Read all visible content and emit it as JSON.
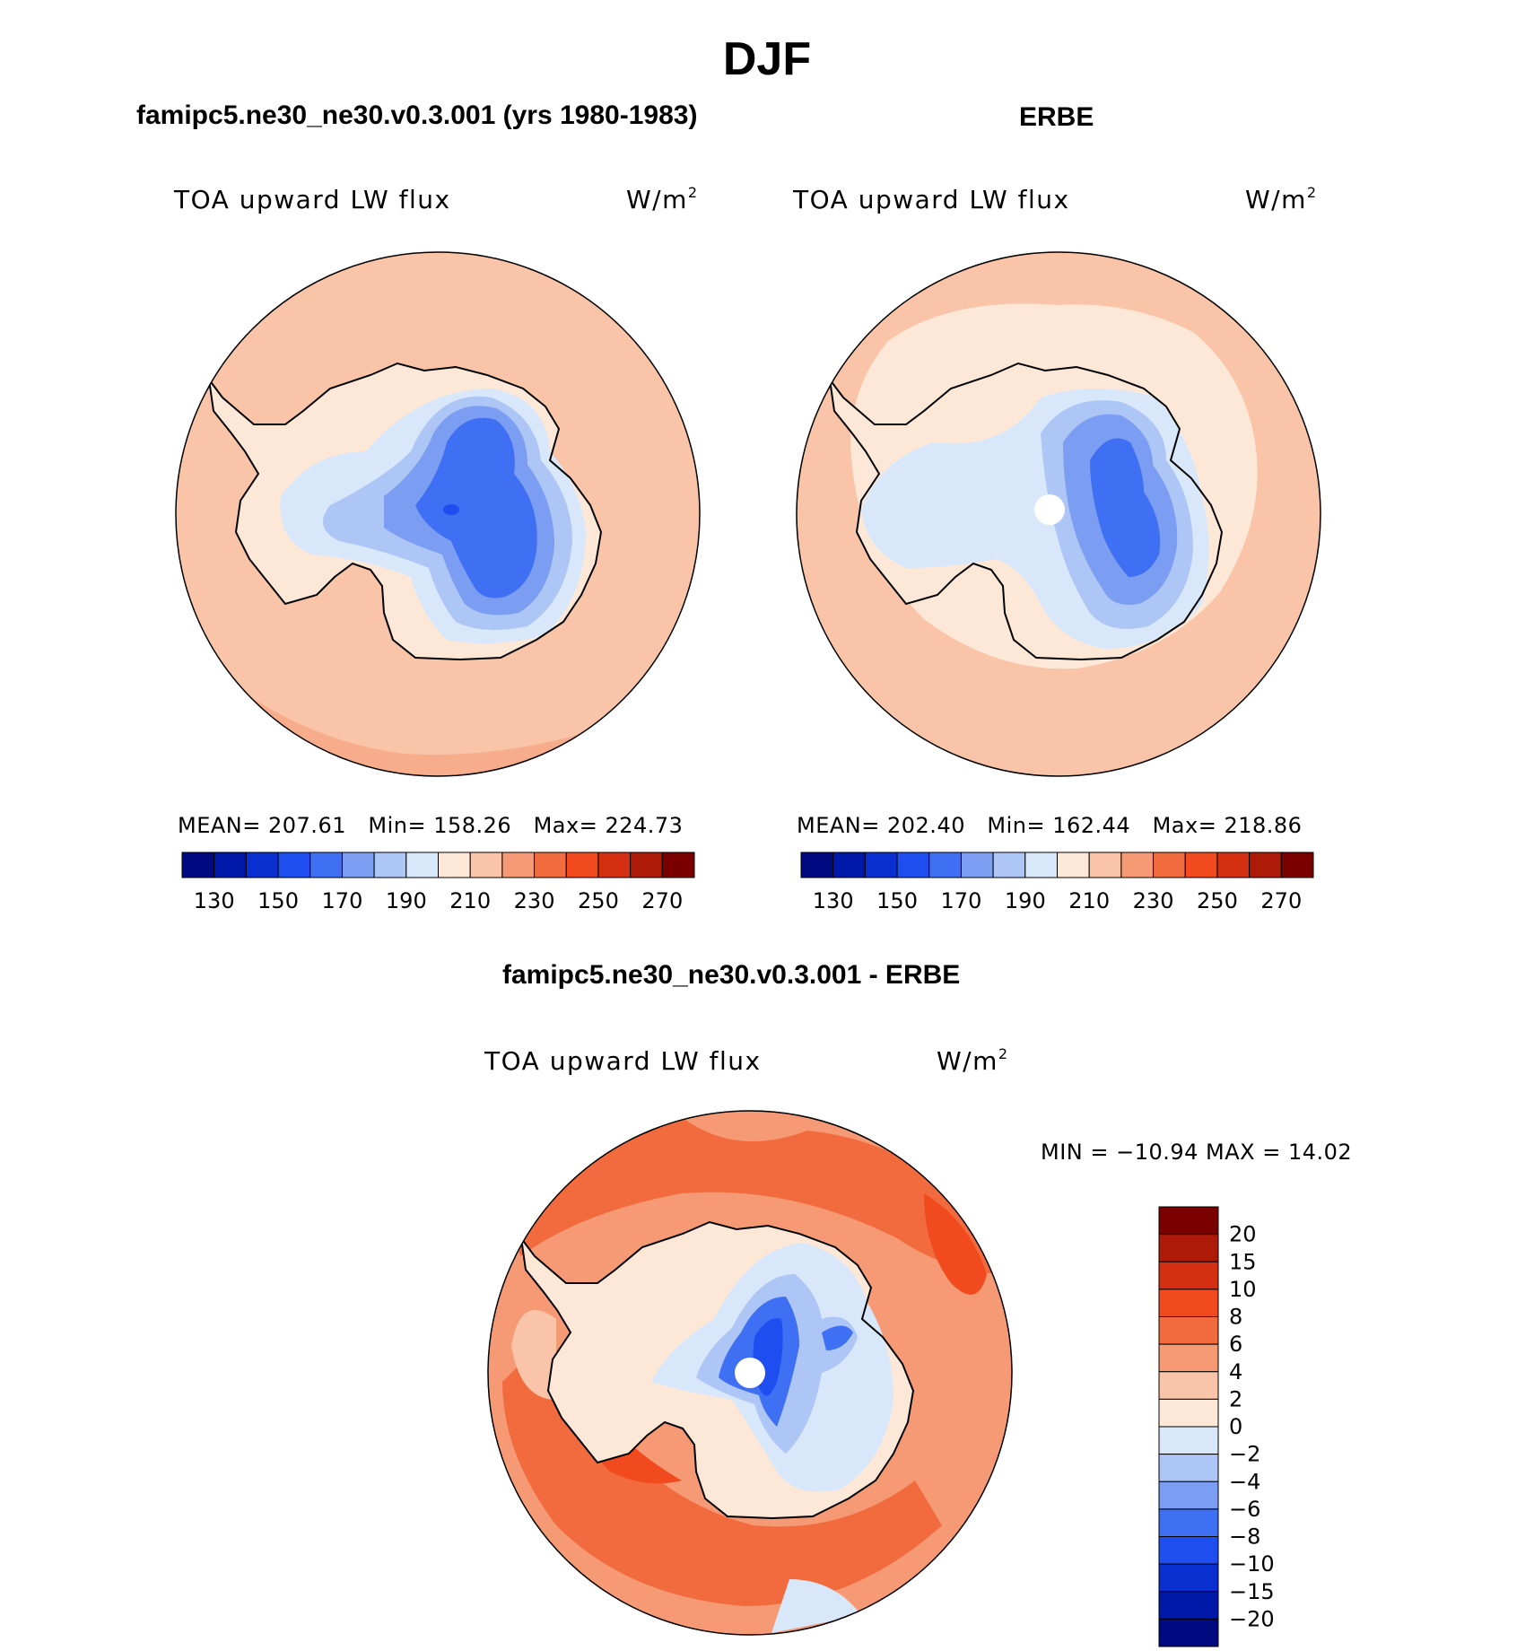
{
  "figure_title": "DJF",
  "panels": {
    "model": {
      "title": "famipc5.ne30_ne30.v0.3.001 (yrs 1980-1983)",
      "variable": "TOA upward LW flux",
      "units_base": "W/m",
      "units_sup": "2",
      "stats": {
        "mean_label": "MEAN=",
        "mean": "207.61",
        "min_label": "Min=",
        "min": "158.26",
        "max_label": "Max=",
        "max": "224.73"
      }
    },
    "obs": {
      "title": "ERBE",
      "variable": "TOA upward LW flux",
      "units_base": "W/m",
      "units_sup": "2",
      "stats": {
        "mean_label": "MEAN=",
        "mean": "202.40",
        "min_label": "Min=",
        "min": "162.44",
        "max_label": "Max=",
        "max": "218.86"
      }
    },
    "diff": {
      "title": "famipc5.ne30_ne30.v0.3.001 - ERBE",
      "variable": "TOA upward LW flux",
      "units_base": "W/m",
      "units_sup": "2",
      "minmax_text": "MIN = −10.94 MAX =  14.02"
    }
  },
  "abs_colorbar": {
    "tick_labels": [
      "130",
      "150",
      "170",
      "190",
      "210",
      "230",
      "250",
      "270"
    ],
    "levels": [
      130,
      140,
      150,
      160,
      170,
      180,
      190,
      200,
      210,
      220,
      230,
      240,
      250,
      260,
      270
    ],
    "colors": [
      "#000a80",
      "#0018a8",
      "#0a2fd0",
      "#1e4ef0",
      "#3f6ff2",
      "#7b9df2",
      "#adc6f5",
      "#d8e8fa",
      "#fde8d8",
      "#f9c4a8",
      "#f59a74",
      "#f26b3e",
      "#f04a1e",
      "#d42f10",
      "#ad1a08",
      "#7a0000"
    ]
  },
  "diff_colorbar": {
    "tick_labels": [
      "20",
      "15",
      "10",
      "8",
      "6",
      "4",
      "2",
      "0",
      "−2",
      "−4",
      "−6",
      "−8",
      "−10",
      "−15",
      "−20"
    ],
    "colors_top_to_bottom": [
      "#7a0000",
      "#ad1a08",
      "#d42f10",
      "#f04a1e",
      "#f26b3e",
      "#f59a74",
      "#f9c4a8",
      "#fde8d8",
      "#d8e8fa",
      "#adc6f5",
      "#7b9df2",
      "#3f6ff2",
      "#1e4ef0",
      "#0a2fd0",
      "#0018a8",
      "#000a80"
    ]
  },
  "chart_data": [
    {
      "type": "heatmap",
      "projection": "south polar stereographic",
      "title": "famipc5.ne30_ne30.v0.3.001 (yrs 1980-1983)",
      "variable": "TOA upward LW flux",
      "units": "W/m2",
      "mean": 207.61,
      "min": 158.26,
      "max": 224.73,
      "contour_levels": [
        130,
        140,
        150,
        160,
        170,
        180,
        190,
        200,
        210,
        220,
        230,
        240,
        250,
        260,
        270
      ]
    },
    {
      "type": "heatmap",
      "projection": "south polar stereographic",
      "title": "ERBE",
      "variable": "TOA upward LW flux",
      "units": "W/m2",
      "mean": 202.4,
      "min": 162.44,
      "max": 218.86,
      "contour_levels": [
        130,
        140,
        150,
        160,
        170,
        180,
        190,
        200,
        210,
        220,
        230,
        240,
        250,
        260,
        270
      ]
    },
    {
      "type": "heatmap",
      "projection": "south polar stereographic",
      "title": "famipc5.ne30_ne30.v0.3.001 - ERBE",
      "variable": "TOA upward LW flux",
      "units": "W/m2",
      "min": -10.94,
      "max": 14.02,
      "contour_levels": [
        -20,
        -15,
        -10,
        -8,
        -6,
        -4,
        -2,
        0,
        2,
        4,
        6,
        8,
        10,
        15,
        20
      ]
    }
  ]
}
